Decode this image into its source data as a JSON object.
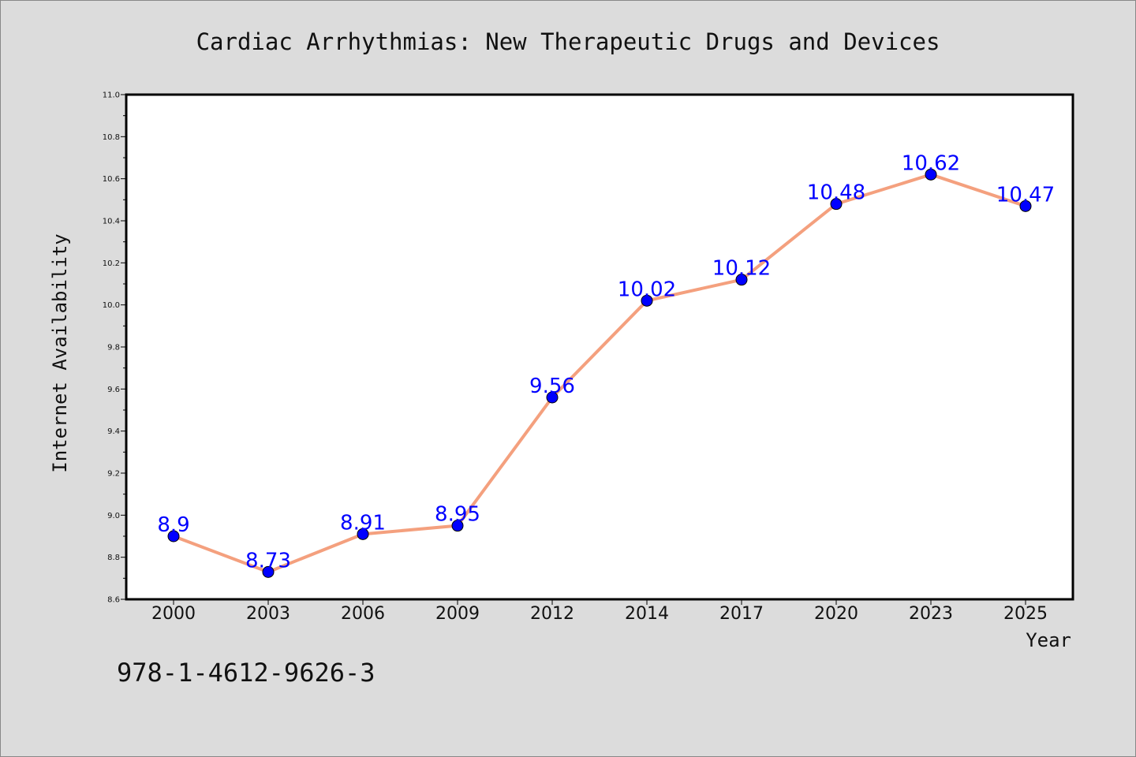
{
  "chart_data": {
    "type": "line",
    "title": "Cardiac Arrhythmias: New Therapeutic Drugs and Devices",
    "xlabel": "Year",
    "ylabel": "Internet Availability",
    "categories": [
      "2000",
      "2003",
      "2006",
      "2009",
      "2012",
      "2014",
      "2017",
      "2020",
      "2023",
      "2025"
    ],
    "series": [
      {
        "values": [
          8.9,
          8.73,
          8.91,
          8.95,
          9.56,
          10.02,
          10.12,
          10.48,
          10.62,
          10.47
        ],
        "data_labels": [
          "8.9",
          "8.73",
          "8.91",
          "8.95",
          "9.56",
          "10.02",
          "10.12",
          "10.48",
          "10.62",
          "10.47"
        ],
        "line_color": "#f4a07e",
        "marker_color": "#0000ff"
      }
    ],
    "ylim": [
      8.6,
      11.0
    ],
    "yticks": [
      "8.6",
      "8.8",
      "9.0",
      "9.2",
      "9.4",
      "9.6",
      "9.8",
      "10.0",
      "10.2",
      "10.4",
      "10.6",
      "10.8",
      "11.0"
    ],
    "grid": false,
    "background_color": "#dcdcdc",
    "plot_background_color": "#ffffff"
  },
  "footer": {
    "isbn": "978-1-4612-9626-3"
  }
}
